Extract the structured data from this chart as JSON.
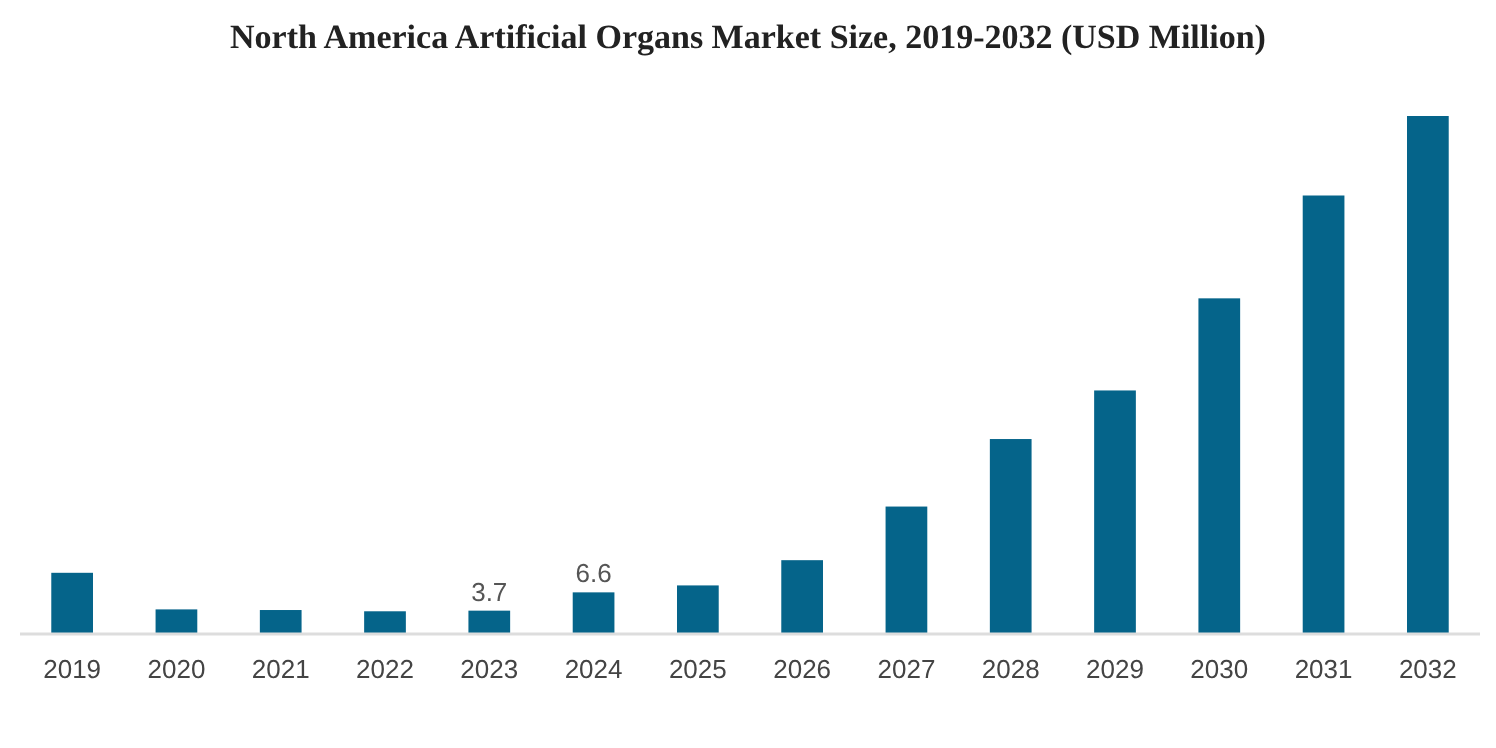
{
  "chart_data": {
    "type": "bar",
    "title": "North America Artificial Organs Market Size, 2019-2032 (USD Million)",
    "categories": [
      "2019",
      "2020",
      "2021",
      "2022",
      "2023",
      "2024",
      "2025",
      "2026",
      "2027",
      "2028",
      "2029",
      "2030",
      "2031",
      "2032"
    ],
    "values": [
      9.7,
      3.9,
      3.8,
      3.6,
      3.7,
      6.6,
      7.7,
      11.7,
      20.2,
      30.9,
      38.6,
      53.2,
      69.5,
      82.1
    ],
    "value_labels": [
      null,
      null,
      null,
      null,
      "3.7",
      "6.6",
      null,
      null,
      null,
      null,
      null,
      null,
      null,
      null
    ],
    "color": "#05648a"
  }
}
